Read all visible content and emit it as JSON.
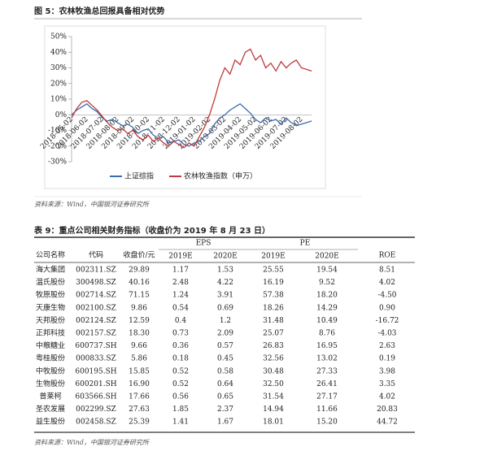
{
  "chart_data": {
    "type": "line",
    "title": "图 5：农林牧渔总回报具备相对优势",
    "categories": [
      "2018-05-02",
      null,
      null,
      "2018-06-02",
      null,
      null,
      "2018-07-02",
      null,
      null,
      "2018-08-02",
      null,
      null,
      "2018-09-02",
      null,
      null,
      "2018-10-02",
      null,
      null,
      "2018-11-02",
      null,
      null,
      "2018-12-02",
      null,
      null,
      "2019-01-02",
      null,
      null,
      "2019-02-02",
      null,
      null,
      "2019-03-02",
      null,
      null,
      "2019-04-02",
      null,
      null,
      "2019-05-02",
      null,
      null,
      "2019-06-02",
      null,
      null,
      "2019-07-02",
      null,
      null,
      "2019-08-02",
      null,
      null
    ],
    "series": [
      {
        "name": "上证综指",
        "color": "#3a6cb0",
        "values": [
          0,
          3,
          5,
          7,
          4,
          2,
          -2,
          -4,
          -3,
          -5,
          -7,
          -6,
          -8,
          -12,
          -10,
          -9,
          -13,
          -15,
          -14,
          -18,
          -17,
          -16,
          -19,
          -20,
          -18,
          -17,
          -14,
          -12,
          -6,
          -2,
          0,
          3,
          5,
          7,
          4,
          1,
          -3,
          -5,
          -2,
          -4,
          -3,
          -6,
          -2,
          -5,
          -7,
          -6,
          -5,
          -4
        ]
      },
      {
        "name": "农林牧渔指数（申万）",
        "color": "#c0393b",
        "values": [
          -2,
          4,
          8,
          9,
          6,
          3,
          -1,
          -5,
          -8,
          -10,
          -9,
          -12,
          -10,
          -14,
          -16,
          -13,
          -17,
          -15,
          -18,
          -20,
          -17,
          -19,
          -21,
          -18,
          -20,
          -14,
          -8,
          0,
          10,
          22,
          30,
          26,
          35,
          32,
          40,
          42,
          35,
          38,
          30,
          33,
          28,
          34,
          30,
          33,
          35,
          30,
          29,
          28
        ]
      }
    ],
    "ylim": [
      -30,
      50
    ],
    "yticks": [
      {
        "value": -30,
        "label": "-30%"
      },
      {
        "value": -20,
        "label": "-20%"
      },
      {
        "value": -10,
        "label": "-10%"
      },
      {
        "value": 0,
        "label": "0%"
      },
      {
        "value": 10,
        "label": "10%"
      },
      {
        "value": 20,
        "label": "20%"
      },
      {
        "value": 30,
        "label": "30%"
      },
      {
        "value": 40,
        "label": "40%"
      },
      {
        "value": 50,
        "label": "50%"
      }
    ],
    "legend": "bottom"
  },
  "chart_source": "资料来源：Wind，中国银河证券研究所",
  "table": {
    "title": "表 9：重点公司相关财务指标（收盘价为 2019 年 8 月 23 日）",
    "header_row1": [
      "公司名称",
      "代码",
      "收盘价/元",
      "EPS",
      "PE",
      "ROE"
    ],
    "header_row2": [
      "2019E",
      "2020E",
      "2019E",
      "2020E"
    ],
    "rows": [
      [
        "海大集团",
        "002311.SZ",
        "29.89",
        "1.17",
        "1.53",
        "25.55",
        "19.54",
        "8.51"
      ],
      [
        "温氏股份",
        "300498.SZ",
        "40.16",
        "2.48",
        "4.22",
        "16.19",
        "9.52",
        "4.02"
      ],
      [
        "牧原股份",
        "002714.SZ",
        "71.15",
        "1.24",
        "3.91",
        "57.38",
        "18.20",
        "-4.50"
      ],
      [
        "天康生物",
        "002100.SZ",
        "9.86",
        "0.54",
        "0.69",
        "18.26",
        "14.29",
        "0.90"
      ],
      [
        "天邦股份",
        "002124.SZ",
        "12.59",
        "0.4",
        "1.2",
        "31.48",
        "10.49",
        "-16.72"
      ],
      [
        "正邦科技",
        "002157.SZ",
        "18.30",
        "0.73",
        "2.09",
        "25.07",
        "8.76",
        "-4.03"
      ],
      [
        "中粮糖业",
        "600737.SH",
        "9.66",
        "0.36",
        "0.57",
        "26.83",
        "16.95",
        "2.63"
      ],
      [
        "粤桂股份",
        "000833.SZ",
        "5.86",
        "0.18",
        "0.45",
        "32.56",
        "13.02",
        "0.19"
      ],
      [
        "中牧股份",
        "600195.SH",
        "15.85",
        "0.52",
        "0.58",
        "30.48",
        "27.33",
        "3.98"
      ],
      [
        "生物股份",
        "600201.SH",
        "16.90",
        "0.52",
        "0.64",
        "32.50",
        "26.41",
        "3.35"
      ],
      [
        "普莱柯",
        "603566.SH",
        "17.66",
        "0.56",
        "0.65",
        "31.54",
        "27.17",
        "4.02"
      ],
      [
        "圣农发展",
        "002299.SZ",
        "27.63",
        "1.85",
        "2.37",
        "14.94",
        "11.66",
        "20.83"
      ],
      [
        "益生股份",
        "002458.SZ",
        "25.39",
        "1.41",
        "1.67",
        "18.01",
        "15.20",
        "44.72"
      ]
    ],
    "source": "资料来源：Wind，中国银河证券研究所"
  }
}
